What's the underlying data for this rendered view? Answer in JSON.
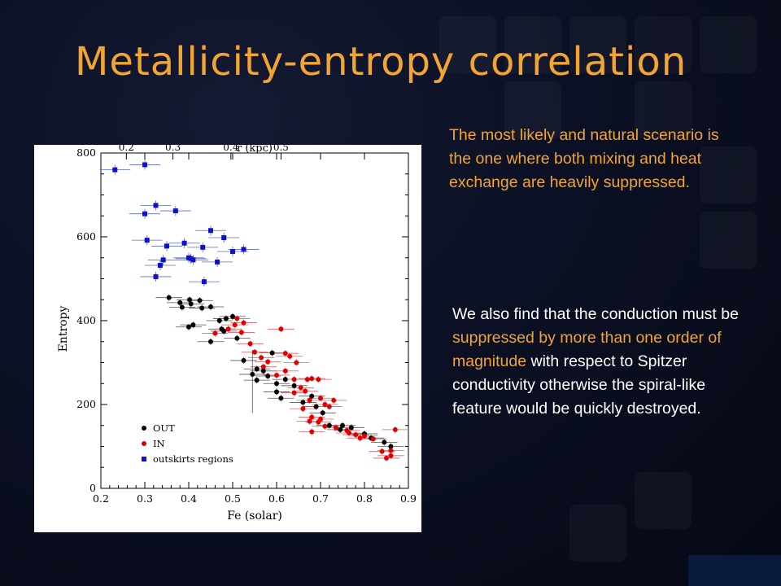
{
  "slide": {
    "title": "Metallicity-entropy correlation",
    "title_color": "#f2a531",
    "background_color": "#0b1024",
    "paragraph1": {
      "text": "The most likely and natural scenario is the one where both mixing and heat exchange are heavily suppressed.",
      "color": "#f2a531"
    },
    "paragraph2": {
      "segments": [
        {
          "text": "We also find that the conduction must be ",
          "highlight": false
        },
        {
          "text": "suppressed by more than one order of magnitude",
          "highlight": true
        },
        {
          "text": " with respect to Spitzer conductivity otherwise  the spiral-like feature would be quickly destroyed.",
          "highlight": false
        }
      ],
      "color": "#ffffff",
      "highlight_color": "#f2a531"
    }
  },
  "chart_data": {
    "type": "scatter",
    "xlabel": "Fe (solar)",
    "ylabel": "Entropy",
    "top_axis_label": "r (kpc)",
    "xlim": [
      0.2,
      0.9
    ],
    "ylim": [
      0,
      800
    ],
    "x_ticks": [
      "0.2",
      "0.3",
      "0.4",
      "0.5",
      "0.6",
      "0.7",
      "0.8",
      "0.9"
    ],
    "y_ticks": [
      "0",
      "200",
      "400",
      "600",
      "800"
    ],
    "top_ticks": [
      {
        "label": "0.2",
        "fe": 0.258
      },
      {
        "label": "0.3",
        "fe": 0.364
      },
      {
        "label": "0.4",
        "fe": 0.496
      },
      {
        "label": "0.5",
        "fe": 0.61
      }
    ],
    "error_bars": true,
    "legend_position": "bottom-left",
    "series": [
      {
        "name": "OUT",
        "color": "#000000",
        "marker": "circle",
        "points": [
          [
            0.355,
            455
          ],
          [
            0.38,
            443
          ],
          [
            0.402,
            450
          ],
          [
            0.405,
            440
          ],
          [
            0.425,
            448
          ],
          [
            0.43,
            430
          ],
          [
            0.385,
            432
          ],
          [
            0.45,
            433
          ],
          [
            0.47,
            400
          ],
          [
            0.485,
            405
          ],
          [
            0.45,
            350
          ],
          [
            0.41,
            390
          ],
          [
            0.4,
            385
          ],
          [
            0.475,
            380
          ],
          [
            0.51,
            358
          ],
          [
            0.525,
            305
          ],
          [
            0.545,
            272
          ],
          [
            0.555,
            285
          ],
          [
            0.57,
            280
          ],
          [
            0.555,
            258
          ],
          [
            0.58,
            268
          ],
          [
            0.6,
            250
          ],
          [
            0.62,
            260
          ],
          [
            0.6,
            230
          ],
          [
            0.61,
            215
          ],
          [
            0.64,
            245
          ],
          [
            0.66,
            205
          ],
          [
            0.68,
            220
          ],
          [
            0.69,
            195
          ],
          [
            0.705,
            180
          ],
          [
            0.72,
            150
          ],
          [
            0.745,
            140
          ],
          [
            0.75,
            150
          ],
          [
            0.77,
            145
          ],
          [
            0.8,
            130
          ],
          [
            0.815,
            120
          ],
          [
            0.845,
            110
          ],
          [
            0.86,
            100
          ],
          [
            0.5,
            410
          ],
          [
            0.48,
            375
          ],
          [
            0.59,
            323
          ]
        ]
      },
      {
        "name": "IN",
        "color": "#e00000",
        "marker": "circle",
        "points": [
          [
            0.51,
            405
          ],
          [
            0.525,
            395
          ],
          [
            0.505,
            390
          ],
          [
            0.49,
            380
          ],
          [
            0.52,
            372
          ],
          [
            0.46,
            370
          ],
          [
            0.54,
            345
          ],
          [
            0.55,
            325
          ],
          [
            0.565,
            312
          ],
          [
            0.57,
            290
          ],
          [
            0.58,
            302
          ],
          [
            0.61,
            380
          ],
          [
            0.62,
            322
          ],
          [
            0.63,
            315
          ],
          [
            0.645,
            300
          ],
          [
            0.62,
            280
          ],
          [
            0.6,
            270
          ],
          [
            0.64,
            260
          ],
          [
            0.67,
            260
          ],
          [
            0.68,
            262
          ],
          [
            0.695,
            260
          ],
          [
            0.655,
            240
          ],
          [
            0.665,
            232
          ],
          [
            0.64,
            228
          ],
          [
            0.675,
            210
          ],
          [
            0.7,
            215
          ],
          [
            0.71,
            200
          ],
          [
            0.72,
            195
          ],
          [
            0.73,
            210
          ],
          [
            0.66,
            190
          ],
          [
            0.68,
            170
          ],
          [
            0.7,
            165
          ],
          [
            0.675,
            160
          ],
          [
            0.695,
            158
          ],
          [
            0.71,
            148
          ],
          [
            0.735,
            145
          ],
          [
            0.76,
            138
          ],
          [
            0.765,
            132
          ],
          [
            0.78,
            128
          ],
          [
            0.79,
            120
          ],
          [
            0.8,
            125
          ],
          [
            0.82,
            118
          ],
          [
            0.84,
            88
          ],
          [
            0.85,
            72
          ],
          [
            0.86,
            78
          ],
          [
            0.87,
            140
          ],
          [
            0.86,
            90
          ],
          [
            0.68,
            135
          ]
        ]
      },
      {
        "name": "outskirts regions",
        "color": "#1010d0",
        "marker": "square",
        "points": [
          [
            0.232,
            760
          ],
          [
            0.3,
            772
          ],
          [
            0.3,
            655
          ],
          [
            0.325,
            675
          ],
          [
            0.37,
            662
          ],
          [
            0.305,
            592
          ],
          [
            0.35,
            578
          ],
          [
            0.342,
            545
          ],
          [
            0.335,
            532
          ],
          [
            0.325,
            505
          ],
          [
            0.39,
            585
          ],
          [
            0.4,
            550
          ],
          [
            0.405,
            548
          ],
          [
            0.41,
            545
          ],
          [
            0.432,
            575
          ],
          [
            0.45,
            615
          ],
          [
            0.465,
            540
          ],
          [
            0.48,
            598
          ],
          [
            0.5,
            565
          ],
          [
            0.525,
            570
          ],
          [
            0.435,
            493
          ]
        ]
      }
    ]
  }
}
